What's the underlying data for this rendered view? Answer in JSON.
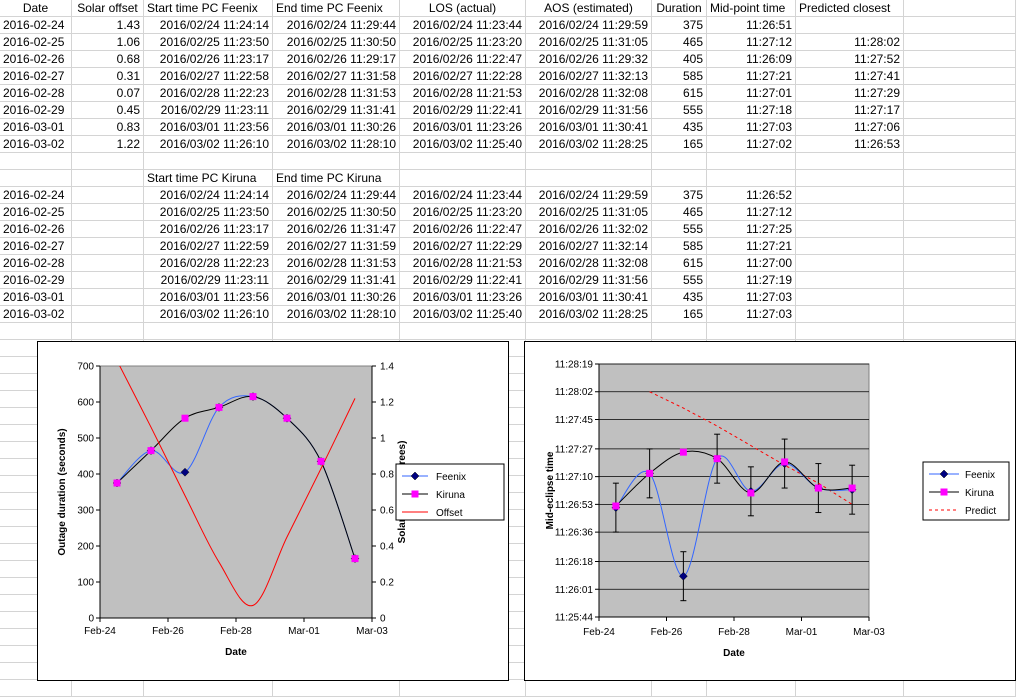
{
  "table1": {
    "headers": [
      "Date",
      "Solar offset",
      "Start time PC Feenix",
      "End time PC Feenix",
      "LOS (actual)",
      "AOS (estimated)",
      "Duration",
      "Mid-point time",
      "Predicted closest"
    ],
    "rows": [
      [
        "2016-02-24",
        "1.43",
        "2016/02/24 11:24:14",
        "2016/02/24 11:29:44",
        "2016/02/24 11:23:44",
        "2016/02/24 11:29:59",
        "375",
        "11:26:51",
        ""
      ],
      [
        "2016-02-25",
        "1.06",
        "2016/02/25 11:23:50",
        "2016/02/25 11:30:50",
        "2016/02/25 11:23:20",
        "2016/02/25 11:31:05",
        "465",
        "11:27:12",
        "11:28:02"
      ],
      [
        "2016-02-26",
        "0.68",
        "2016/02/26 11:23:17",
        "2016/02/26 11:29:17",
        "2016/02/26 11:22:47",
        "2016/02/26 11:29:32",
        "405",
        "11:26:09",
        "11:27:52"
      ],
      [
        "2016-02-27",
        "0.31",
        "2016/02/27 11:22:58",
        "2016/02/27 11:31:58",
        "2016/02/27 11:22:28",
        "2016/02/27 11:32:13",
        "585",
        "11:27:21",
        "11:27:41"
      ],
      [
        "2016-02-28",
        "0.07",
        "2016/02/28 11:22:23",
        "2016/02/28 11:31:53",
        "2016/02/28 11:21:53",
        "2016/02/28 11:32:08",
        "615",
        "11:27:01",
        "11:27:29"
      ],
      [
        "2016-02-29",
        "0.45",
        "2016/02/29 11:23:11",
        "2016/02/29 11:31:41",
        "2016/02/29 11:22:41",
        "2016/02/29 11:31:56",
        "555",
        "11:27:18",
        "11:27:17"
      ],
      [
        "2016-03-01",
        "0.83",
        "2016/03/01 11:23:56",
        "2016/03/01 11:30:26",
        "2016/03/01 11:23:26",
        "2016/03/01 11:30:41",
        "435",
        "11:27:03",
        "11:27:06"
      ],
      [
        "2016-03-02",
        "1.22",
        "2016/03/02 11:26:10",
        "2016/03/02 11:28:10",
        "2016/03/02 11:25:40",
        "2016/03/02 11:28:25",
        "165",
        "11:27:02",
        "11:26:53"
      ]
    ]
  },
  "table2": {
    "headers": [
      "",
      "",
      "Start time PC Kiruna",
      "End time PC Kiruna",
      "",
      "",
      "",
      "",
      ""
    ],
    "rows": [
      [
        "2016-02-24",
        "",
        "2016/02/24 11:24:14",
        "2016/02/24 11:29:44",
        "2016/02/24 11:23:44",
        "2016/02/24 11:29:59",
        "375",
        "11:26:52",
        ""
      ],
      [
        "2016-02-25",
        "",
        "2016/02/25 11:23:50",
        "2016/02/25 11:30:50",
        "2016/02/25 11:23:20",
        "2016/02/25 11:31:05",
        "465",
        "11:27:12",
        ""
      ],
      [
        "2016-02-26",
        "",
        "2016/02/26 11:23:17",
        "2016/02/26 11:31:47",
        "2016/02/26 11:22:47",
        "2016/02/26 11:32:02",
        "555",
        "11:27:25",
        ""
      ],
      [
        "2016-02-27",
        "",
        "2016/02/27 11:22:59",
        "2016/02/27 11:31:59",
        "2016/02/27 11:22:29",
        "2016/02/27 11:32:14",
        "585",
        "11:27:21",
        ""
      ],
      [
        "2016-02-28",
        "",
        "2016/02/28 11:22:23",
        "2016/02/28 11:31:53",
        "2016/02/28 11:21:53",
        "2016/02/28 11:32:08",
        "615",
        "11:27:00",
        ""
      ],
      [
        "2016-02-29",
        "",
        "2016/02/29 11:23:11",
        "2016/02/29 11:31:41",
        "2016/02/29 11:22:41",
        "2016/02/29 11:31:56",
        "555",
        "11:27:19",
        ""
      ],
      [
        "2016-03-01",
        "",
        "2016/03/01 11:23:56",
        "2016/03/01 11:30:26",
        "2016/03/01 11:23:26",
        "2016/03/01 11:30:41",
        "435",
        "11:27:03",
        ""
      ],
      [
        "2016-03-02",
        "",
        "2016/03/02 11:26:10",
        "2016/03/02 11:28:10",
        "2016/03/02 11:25:40",
        "2016/03/02 11:28:25",
        "165",
        "11:27:03",
        ""
      ]
    ]
  },
  "colors": {
    "feenix": "#3366ff",
    "kiruna": "#ff00ff",
    "offset": "#ff0000",
    "predict": "#ff0000",
    "plot_bg": "#c0c0c0",
    "cell_border": "#d4d4d4"
  },
  "chart_data": [
    {
      "type": "line",
      "xlabel": "Date",
      "ylabel": "Outage duration (seconds)",
      "y2label": "Solar offset (degrees)",
      "x_ticks": [
        "Feb-24",
        "Feb-26",
        "Feb-28",
        "Mar-01",
        "Mar-03"
      ],
      "x_tick_values": [
        0,
        2,
        4,
        6,
        8
      ],
      "xlim": [
        0,
        8
      ],
      "ylim": [
        0,
        700
      ],
      "y_ticks": [
        "0",
        "100",
        "200",
        "300",
        "400",
        "500",
        "600",
        "700"
      ],
      "y2lim": [
        0,
        1.4
      ],
      "y2_ticks": [
        "0",
        "0.2",
        "0.4",
        "0.6",
        "0.8",
        "1",
        "1.2",
        "1.4"
      ],
      "x": [
        0,
        1,
        2,
        3,
        4,
        5,
        6,
        7
      ],
      "series": [
        {
          "name": "Feenix",
          "axis": "left",
          "values": [
            375,
            465,
            405,
            585,
            615,
            555,
            435,
            165
          ]
        },
        {
          "name": "Kiruna",
          "axis": "left",
          "values": [
            375,
            465,
            555,
            585,
            615,
            555,
            435,
            165
          ]
        },
        {
          "name": "Offset",
          "axis": "right",
          "values": [
            1.43,
            1.06,
            0.68,
            0.31,
            0.07,
            0.45,
            0.83,
            1.22
          ]
        }
      ],
      "legend": "right",
      "grid": false
    },
    {
      "type": "line",
      "xlabel": "Date",
      "ylabel": "Mid-eclipse time",
      "x_ticks": [
        "Feb-24",
        "Feb-26",
        "Feb-28",
        "Mar-01",
        "Mar-03"
      ],
      "x_tick_values": [
        0,
        2,
        4,
        6,
        8
      ],
      "xlim": [
        0,
        8
      ],
      "ylim": [
        "11:25:44",
        "11:28:19"
      ],
      "y_ticks": [
        "11:28:19",
        "11:28:02",
        "11:27:45",
        "11:27:27",
        "11:27:10",
        "11:26:53",
        "11:26:36",
        "11:26:18",
        "11:26:01",
        "11:25:44"
      ],
      "x": [
        0,
        1,
        2,
        3,
        4,
        5,
        6,
        7
      ],
      "series": [
        {
          "name": "Feenix",
          "values": [
            "11:26:51",
            "11:27:12",
            "11:26:09",
            "11:27:21",
            "11:27:01",
            "11:27:18",
            "11:27:03",
            "11:27:02"
          ]
        },
        {
          "name": "Kiruna",
          "values": [
            "11:26:52",
            "11:27:12",
            "11:27:25",
            "11:27:21",
            "11:27:00",
            "11:27:19",
            "11:27:03",
            "11:27:03"
          ]
        },
        {
          "name": "Predict",
          "x": [
            1,
            2,
            3,
            4,
            5,
            6,
            7
          ],
          "values": [
            "11:28:02",
            "11:27:52",
            "11:27:41",
            "11:27:29",
            "11:27:17",
            "11:27:06",
            "11:26:53"
          ]
        }
      ],
      "error_bar_seconds": 15,
      "legend": "right",
      "grid": true
    }
  ]
}
